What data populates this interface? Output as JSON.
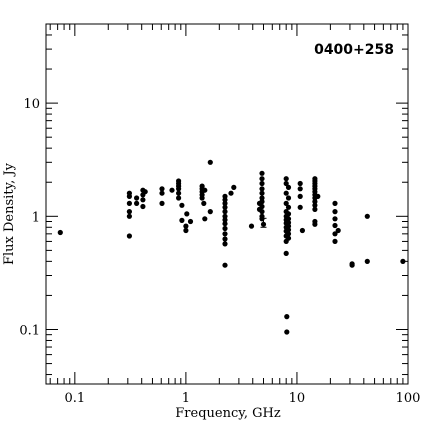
{
  "chart_data": {
    "type": "scatter",
    "title": "",
    "annotation": "0400+258",
    "xlabel": "Frequency, GHz",
    "ylabel": "Flux Density, Jy",
    "x_scale": "log",
    "y_scale": "log",
    "xlim": [
      0.055,
      100
    ],
    "ylim": [
      0.033,
      50
    ],
    "x_ticks": [
      {
        "value": 0.1,
        "label": "0.1"
      },
      {
        "value": 1,
        "label": "1"
      },
      {
        "value": 10,
        "label": "10"
      },
      {
        "value": 100,
        "label": "100"
      }
    ],
    "y_ticks": [
      {
        "value": 0.1,
        "label": "0.1"
      },
      {
        "value": 1,
        "label": "1"
      },
      {
        "value": 10,
        "label": "10"
      }
    ],
    "grid": false,
    "legend": "none",
    "marker_color": "#000000",
    "points": [
      [
        0.074,
        0.72
      ],
      [
        0.31,
        0.67
      ],
      [
        0.31,
        1.6
      ],
      [
        0.31,
        1.5
      ],
      [
        0.31,
        1.3
      ],
      [
        0.31,
        1.1
      ],
      [
        0.31,
        1.0
      ],
      [
        0.36,
        1.3
      ],
      [
        0.36,
        1.45
      ],
      [
        0.41,
        1.7
      ],
      [
        0.41,
        1.55
      ],
      [
        0.41,
        1.4
      ],
      [
        0.41,
        1.22
      ],
      [
        0.43,
        1.65
      ],
      [
        0.61,
        1.75
      ],
      [
        0.61,
        1.6
      ],
      [
        0.61,
        1.3
      ],
      [
        0.75,
        1.7
      ],
      [
        0.86,
        2.05
      ],
      [
        0.86,
        1.95
      ],
      [
        0.86,
        1.85
      ],
      [
        0.86,
        1.75
      ],
      [
        0.86,
        1.6
      ],
      [
        0.86,
        1.45
      ],
      [
        0.92,
        0.92
      ],
      [
        0.92,
        1.25
      ],
      [
        1.0,
        0.82
      ],
      [
        1.0,
        0.75
      ],
      [
        1.02,
        1.05
      ],
      [
        1.1,
        0.9
      ],
      [
        1.4,
        1.85
      ],
      [
        1.4,
        1.75
      ],
      [
        1.4,
        1.65
      ],
      [
        1.4,
        1.55
      ],
      [
        1.4,
        1.45
      ],
      [
        1.45,
        1.3
      ],
      [
        1.48,
        1.7
      ],
      [
        1.48,
        0.95
      ],
      [
        1.66,
        3.0
      ],
      [
        1.66,
        1.1
      ],
      [
        2.25,
        1.5
      ],
      [
        2.25,
        1.4
      ],
      [
        2.25,
        1.3
      ],
      [
        2.25,
        1.2
      ],
      [
        2.25,
        1.1
      ],
      [
        2.25,
        1.0
      ],
      [
        2.25,
        0.93
      ],
      [
        2.25,
        0.86
      ],
      [
        2.25,
        0.78
      ],
      [
        2.25,
        0.7
      ],
      [
        2.25,
        0.63
      ],
      [
        2.25,
        0.57
      ],
      [
        2.25,
        0.37
      ],
      [
        2.55,
        1.6
      ],
      [
        2.7,
        1.8
      ],
      [
        3.9,
        0.82
      ],
      [
        4.6,
        1.3
      ],
      [
        4.6,
        1.15
      ],
      [
        4.85,
        2.4
      ],
      [
        4.85,
        2.15
      ],
      [
        4.85,
        1.95
      ],
      [
        4.85,
        1.75
      ],
      [
        4.85,
        1.6
      ],
      [
        4.85,
        1.45
      ],
      [
        4.85,
        1.35
      ],
      [
        4.85,
        1.22
      ],
      [
        4.85,
        1.1
      ],
      [
        4.85,
        1.0
      ],
      [
        4.85,
        0.95
      ],
      [
        5.0,
        0.85
      ],
      [
        8.0,
        2.15
      ],
      [
        8.0,
        1.95
      ],
      [
        8.0,
        1.6
      ],
      [
        8.0,
        1.3
      ],
      [
        8.0,
        1.1
      ],
      [
        8.0,
        1.0
      ],
      [
        8.0,
        0.93
      ],
      [
        8.0,
        0.87
      ],
      [
        8.0,
        0.8
      ],
      [
        8.0,
        0.74
      ],
      [
        8.0,
        0.67
      ],
      [
        8.0,
        0.6
      ],
      [
        8.0,
        0.47
      ],
      [
        8.1,
        0.13
      ],
      [
        8.1,
        0.095
      ],
      [
        8.4,
        1.8
      ],
      [
        8.4,
        1.45
      ],
      [
        8.4,
        1.2
      ],
      [
        8.4,
        1.05
      ],
      [
        8.4,
        0.95
      ],
      [
        8.4,
        0.88
      ],
      [
        8.4,
        0.82
      ],
      [
        8.4,
        0.76
      ],
      [
        8.4,
        0.7
      ],
      [
        8.4,
        0.64
      ],
      [
        10.7,
        1.95
      ],
      [
        10.7,
        1.75
      ],
      [
        10.7,
        1.5
      ],
      [
        10.7,
        1.2
      ],
      [
        11.2,
        0.75
      ],
      [
        14.5,
        2.15
      ],
      [
        14.5,
        2.05
      ],
      [
        14.5,
        1.95
      ],
      [
        14.5,
        1.85
      ],
      [
        14.5,
        1.75
      ],
      [
        14.5,
        1.65
      ],
      [
        14.5,
        1.55
      ],
      [
        14.5,
        1.45
      ],
      [
        14.5,
        1.35
      ],
      [
        14.5,
        1.25
      ],
      [
        14.5,
        1.15
      ],
      [
        14.5,
        0.9
      ],
      [
        14.5,
        0.85
      ],
      [
        15.4,
        1.5
      ],
      [
        22.0,
        1.3
      ],
      [
        22.0,
        1.1
      ],
      [
        22.0,
        0.95
      ],
      [
        22.0,
        0.83
      ],
      [
        22.0,
        0.7
      ],
      [
        22.0,
        0.6
      ],
      [
        23.5,
        0.75
      ],
      [
        31.4,
        0.38
      ],
      [
        31.4,
        0.37
      ],
      [
        43,
        1.0
      ],
      [
        43,
        0.4
      ],
      [
        90,
        0.4
      ]
    ],
    "error_bars": [
      {
        "x": 5.0,
        "y": 0.88,
        "ylow": 0.8,
        "yhigh": 0.96
      }
    ]
  }
}
